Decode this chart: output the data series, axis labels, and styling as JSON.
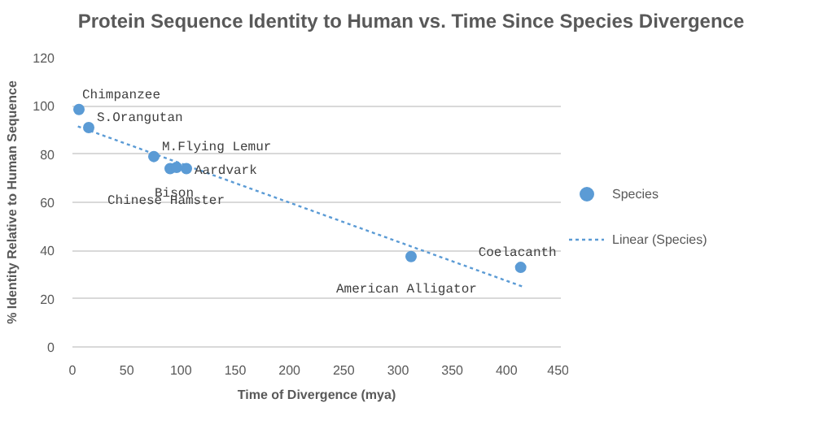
{
  "chart_data": {
    "type": "scatter",
    "title": "Protein Sequence Identity to Human vs. Time Since Species Divergence",
    "xlabel": "Time of Divergence (mya)",
    "ylabel": "% Identity Relative to Human Sequence",
    "series": [
      {
        "name": "Species",
        "color": "#5b9bd5",
        "marker": "circle",
        "x": [
          6,
          15,
          75,
          90,
          96,
          105,
          312,
          413
        ],
        "values": [
          98.5,
          91,
          79,
          74,
          74.5,
          74,
          37.5,
          33
        ]
      },
      {
        "name": "Linear (Species)",
        "type": "line",
        "color": "#5b9bd5",
        "line_style": "dotted",
        "marker": "none",
        "x": [
          5,
          415
        ],
        "values": [
          91.5,
          25
        ]
      }
    ],
    "annotations": [
      {
        "text": "Chimpanzee",
        "x": 6,
        "y": 98.5
      },
      {
        "text": "S.Orangutan",
        "x": 15,
        "y": 91
      },
      {
        "text": "M.Flying Lemur",
        "x": 75,
        "y": 79
      },
      {
        "text": "Chinese Hamster",
        "x": 90,
        "y": 74
      },
      {
        "text": "Bison",
        "x": 96,
        "y": 74.5
      },
      {
        "text": "Aardvark",
        "x": 105,
        "y": 74
      },
      {
        "text": "American Alligator",
        "x": 312,
        "y": 37.5
      },
      {
        "text": "Coelacanth",
        "x": 413,
        "y": 33
      }
    ],
    "xlim": [
      0,
      450
    ],
    "xticks": [
      0,
      50,
      100,
      150,
      200,
      250,
      300,
      350,
      400,
      450
    ],
    "ylim": [
      0,
      120
    ],
    "yticks": [
      0,
      20,
      40,
      60,
      80,
      100,
      120
    ],
    "grid": "y",
    "legend": "right"
  }
}
